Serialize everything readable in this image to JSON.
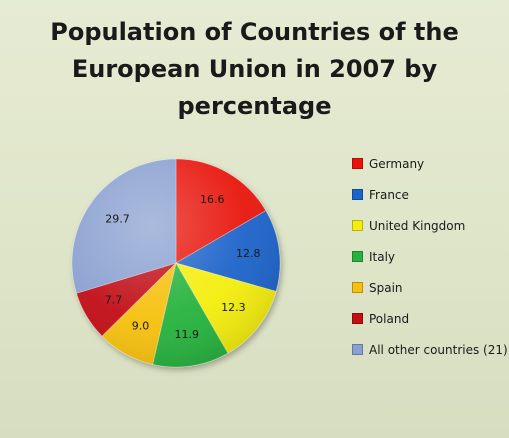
{
  "chart_data": {
    "type": "pie",
    "title": "Population of Countries of the European Union in 2007 by percentage",
    "title_lines": [
      "Population of Countries of the",
      "European Union in 2007 by percentage"
    ],
    "legend_position": "right",
    "start_angle_deg": 0,
    "direction": "clockwise",
    "slices": [
      {
        "label": "Germany",
        "value": 16.6,
        "display": "16.6",
        "color": "#e8140c"
      },
      {
        "label": "France",
        "value": 12.8,
        "display": "12.8",
        "color": "#1c63c9"
      },
      {
        "label": "United Kingdom",
        "value": 12.3,
        "display": "12.3",
        "color": "#f4ee10"
      },
      {
        "label": "Italy",
        "value": 11.9,
        "display": "11.9",
        "color": "#26b23e"
      },
      {
        "label": "Spain",
        "value": 9.0,
        "display": "9.0",
        "color": "#f6c010"
      },
      {
        "label": "Poland",
        "value": 7.7,
        "display": "7.7",
        "color": "#c10f14"
      },
      {
        "label": "All other countries (21)",
        "value": 29.7,
        "display": "29.7",
        "color": "#8aa0d0"
      }
    ]
  }
}
